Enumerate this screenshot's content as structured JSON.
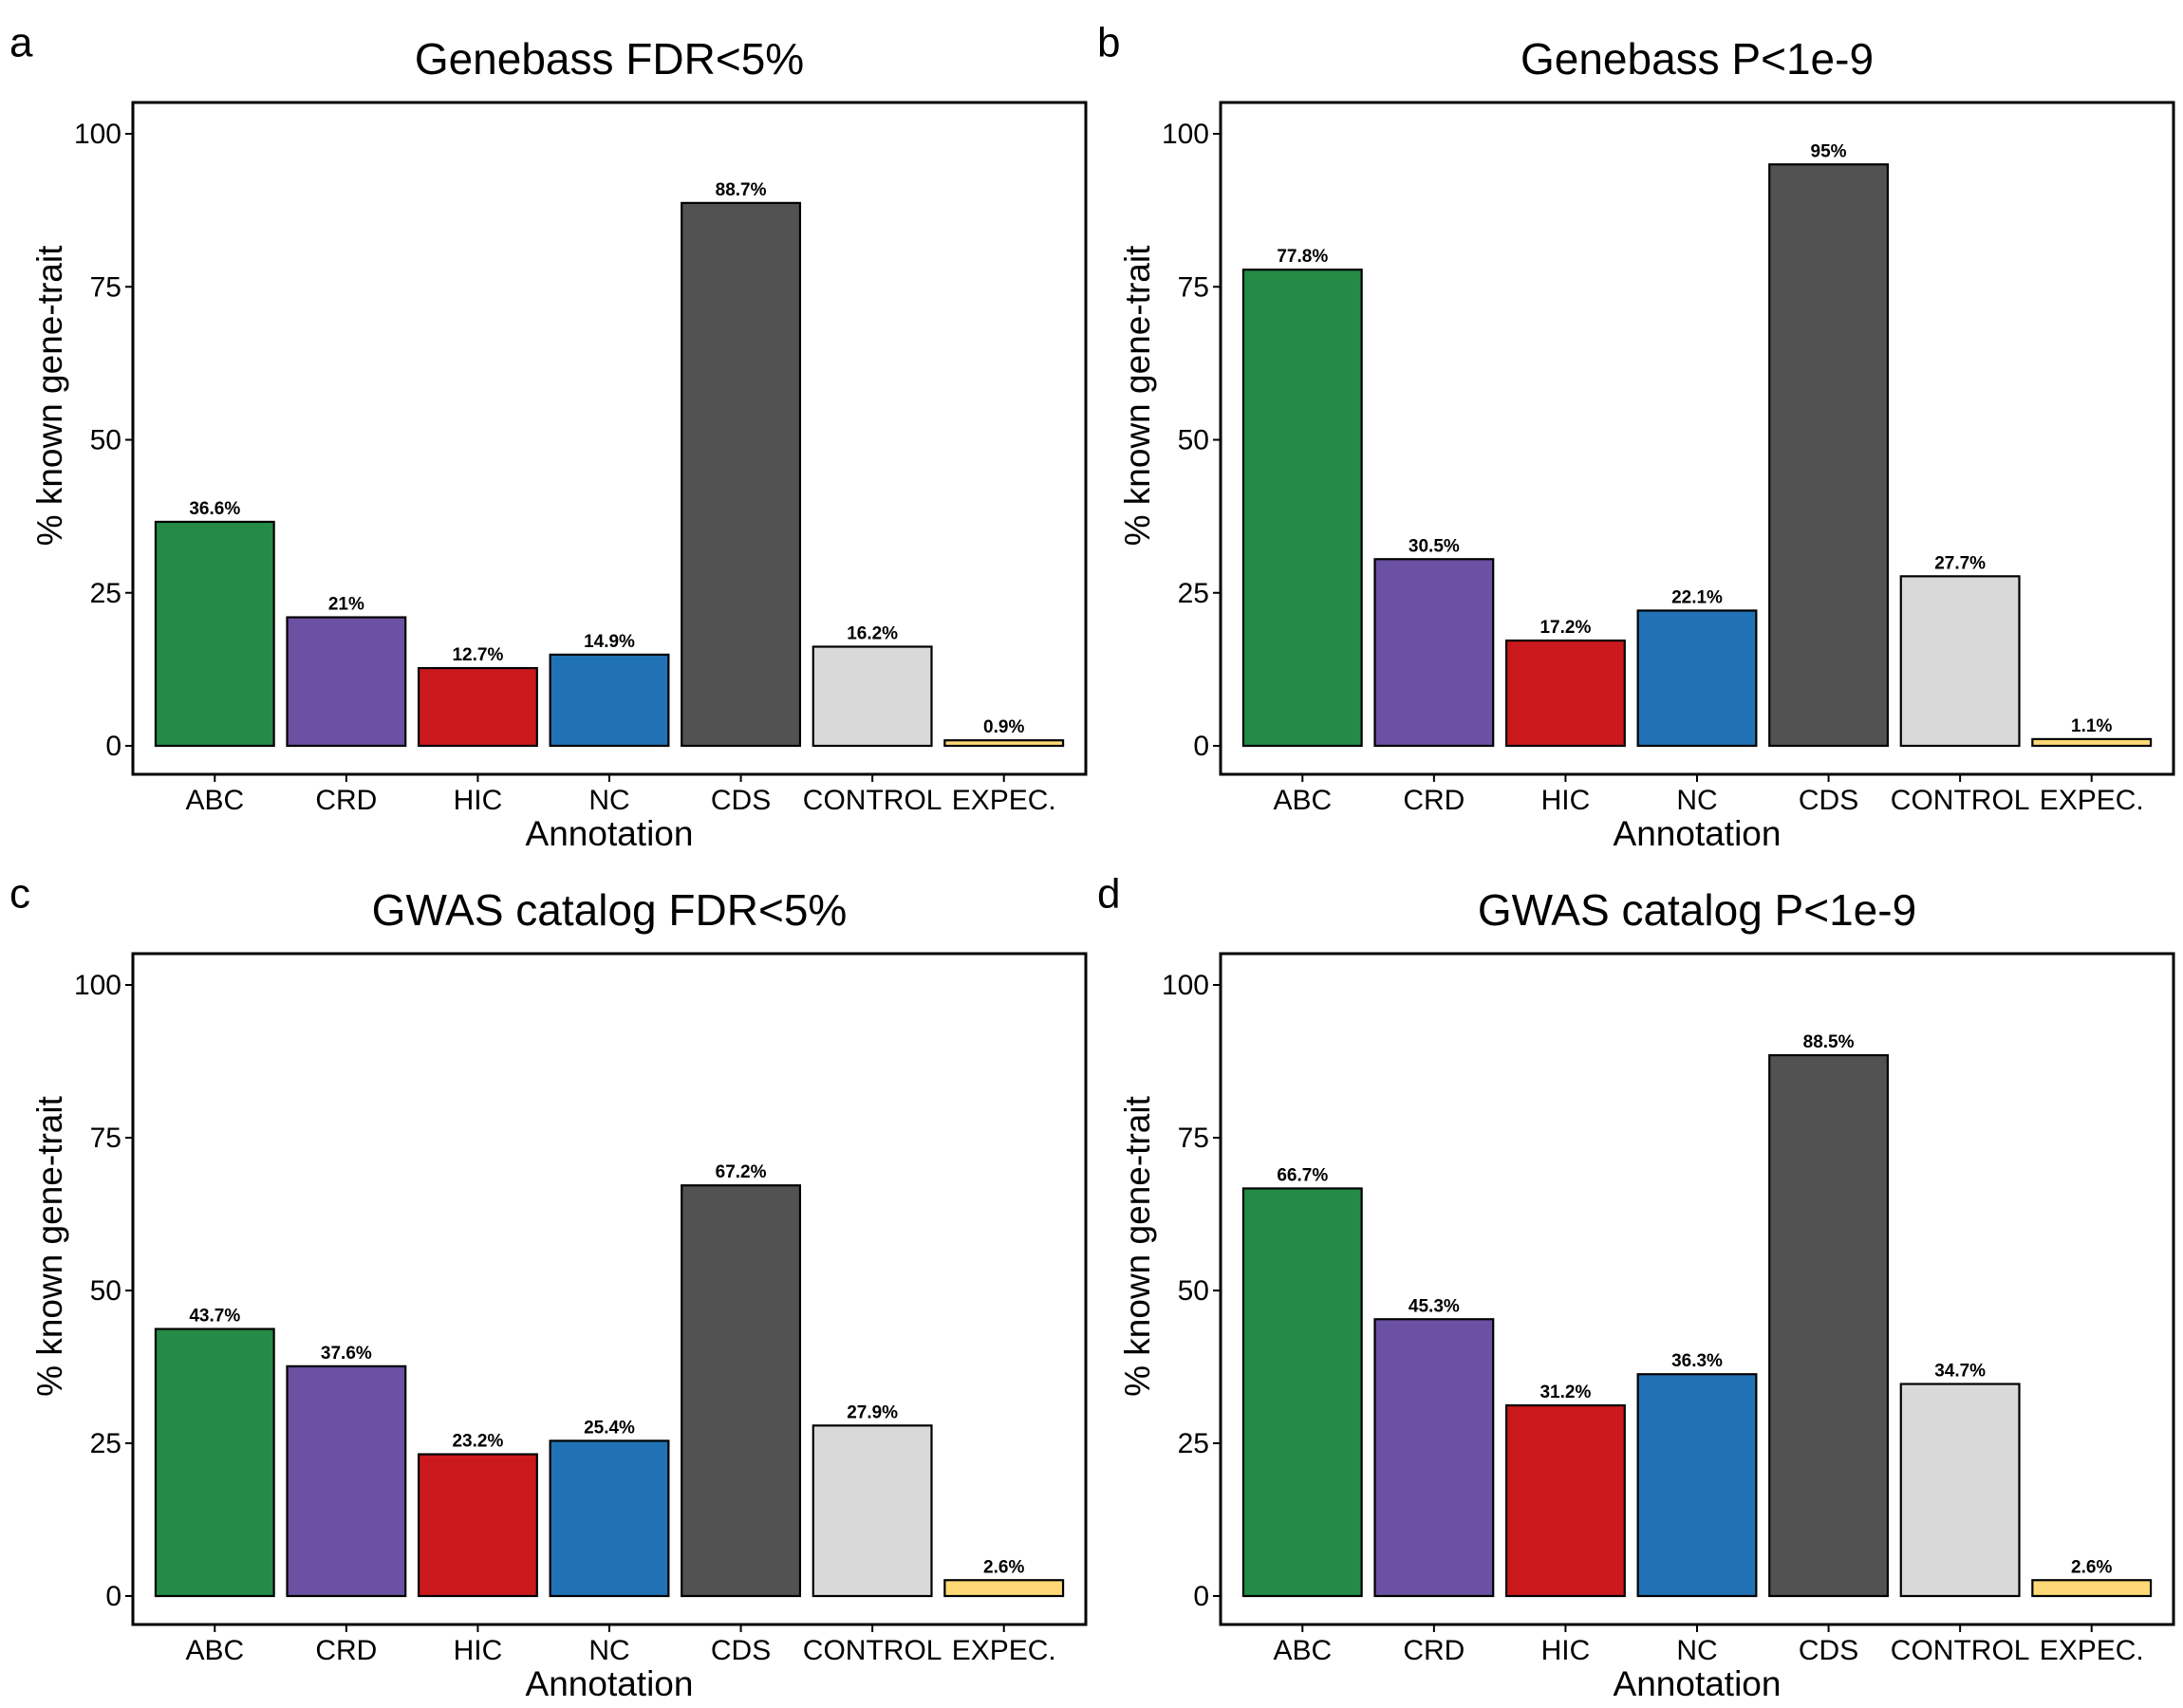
{
  "chart_data": [
    {
      "type": "bar",
      "panel": "a",
      "title": "Genebass FDR<5%",
      "xlabel": "Annotation",
      "ylabel": "% known gene-trait",
      "ylim": [
        0,
        100
      ],
      "yticks": [
        "0",
        "25",
        "50",
        "75",
        "100"
      ],
      "categories": [
        "ABC",
        "CRD",
        "HIC",
        "NC",
        "CDS",
        "CONTROL",
        "EXPEC."
      ],
      "values": [
        36.6,
        21,
        12.7,
        14.9,
        88.7,
        16.2,
        0.9
      ],
      "value_labels": [
        "36.6%",
        "21%",
        "12.7%",
        "14.9%",
        "88.7%",
        "16.2%",
        "0.9%"
      ],
      "colors": [
        "#238b45",
        "#6a51a3",
        "#cb181d",
        "#2171b5",
        "#525252",
        "#d9d9d9",
        "#fed976"
      ],
      "grid": false,
      "legend": "none"
    },
    {
      "type": "bar",
      "panel": "b",
      "title": "Genebass P<1e-9",
      "xlabel": "Annotation",
      "ylabel": "% known gene-trait",
      "ylim": [
        0,
        100
      ],
      "yticks": [
        "0",
        "25",
        "50",
        "75",
        "100"
      ],
      "categories": [
        "ABC",
        "CRD",
        "HIC",
        "NC",
        "CDS",
        "CONTROL",
        "EXPEC."
      ],
      "values": [
        77.8,
        30.5,
        17.2,
        22.1,
        95,
        27.7,
        1.1
      ],
      "value_labels": [
        "77.8%",
        "30.5%",
        "17.2%",
        "22.1%",
        "95%",
        "27.7%",
        "1.1%"
      ],
      "colors": [
        "#238b45",
        "#6a51a3",
        "#cb181d",
        "#2171b5",
        "#525252",
        "#d9d9d9",
        "#fed976"
      ],
      "grid": false,
      "legend": "none"
    },
    {
      "type": "bar",
      "panel": "c",
      "title": "GWAS catalog FDR<5%",
      "xlabel": "Annotation",
      "ylabel": "% known gene-trait",
      "ylim": [
        0,
        100
      ],
      "yticks": [
        "0",
        "25",
        "50",
        "75",
        "100"
      ],
      "categories": [
        "ABC",
        "CRD",
        "HIC",
        "NC",
        "CDS",
        "CONTROL",
        "EXPEC."
      ],
      "values": [
        43.7,
        37.6,
        23.2,
        25.4,
        67.2,
        27.9,
        2.6
      ],
      "value_labels": [
        "43.7%",
        "37.6%",
        "23.2%",
        "25.4%",
        "67.2%",
        "27.9%",
        "2.6%"
      ],
      "colors": [
        "#238b45",
        "#6a51a3",
        "#cb181d",
        "#2171b5",
        "#525252",
        "#d9d9d9",
        "#fed976"
      ],
      "grid": false,
      "legend": "none"
    },
    {
      "type": "bar",
      "panel": "d",
      "title": "GWAS catalog P<1e-9",
      "xlabel": "Annotation",
      "ylabel": "% known gene-trait",
      "ylim": [
        0,
        100
      ],
      "yticks": [
        "0",
        "25",
        "50",
        "75",
        "100"
      ],
      "categories": [
        "ABC",
        "CRD",
        "HIC",
        "NC",
        "CDS",
        "CONTROL",
        "EXPEC."
      ],
      "values": [
        66.7,
        45.3,
        31.2,
        36.3,
        88.5,
        34.7,
        2.6
      ],
      "value_labels": [
        "66.7%",
        "45.3%",
        "31.2%",
        "36.3%",
        "88.5%",
        "34.7%",
        "2.6%"
      ],
      "colors": [
        "#238b45",
        "#6a51a3",
        "#cb181d",
        "#2171b5",
        "#525252",
        "#d9d9d9",
        "#fed976"
      ],
      "grid": false,
      "legend": "none"
    }
  ]
}
